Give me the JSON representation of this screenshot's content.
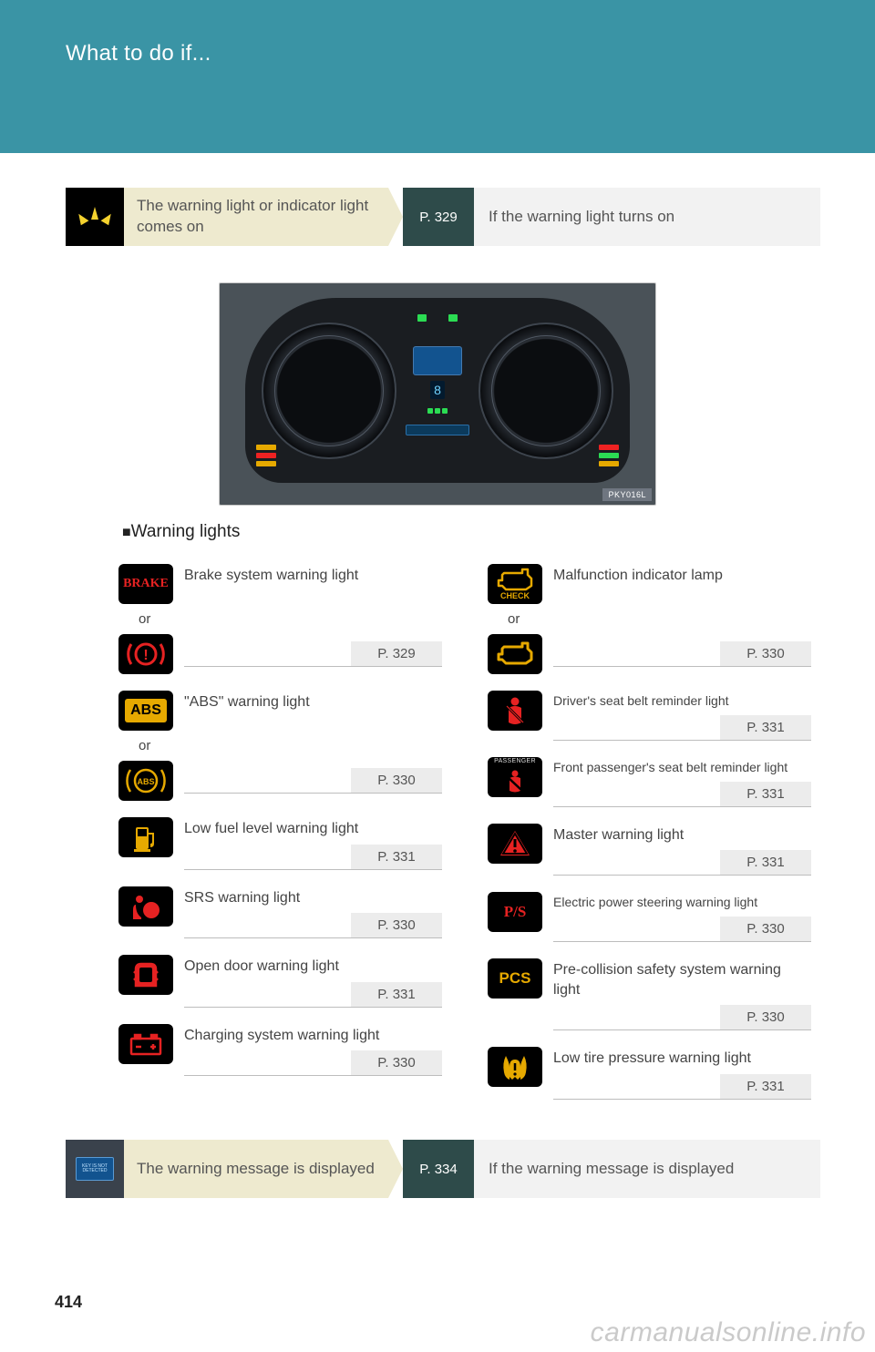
{
  "page": {
    "header": "What to do if...",
    "number": "414",
    "watermark": "carmanualsonline.info",
    "section_title": "Warning lights",
    "image_tag": "PKY016L"
  },
  "banner_top": {
    "left_text": "The warning light or indicator light comes on",
    "page_ref": "P. 329",
    "right_text": "If the warning light turns on"
  },
  "banner_bottom": {
    "left_text": "The warning message is displayed",
    "page_ref": "P. 334",
    "right_text": "If the warning message is displayed"
  },
  "left_col": [
    {
      "icon": "brake-text",
      "label": "Brake system warning light",
      "or_icon": "brake-circle",
      "pref": "P. 329"
    },
    {
      "icon": "abs-text",
      "label": "\"ABS\" warning light",
      "or_icon": "abs-circle",
      "pref": "P. 330"
    },
    {
      "icon": "fuel",
      "label": "Low fuel level warning light",
      "pref": "P. 331"
    },
    {
      "icon": "srs",
      "label": "SRS warning light",
      "pref": "P. 330"
    },
    {
      "icon": "door",
      "label": "Open door warning light",
      "pref": "P. 331"
    },
    {
      "icon": "battery",
      "label": "Charging system warning light",
      "pref": "P. 330"
    }
  ],
  "right_col": [
    {
      "icon": "check-text",
      "label": "Malfunction indicator lamp",
      "or_icon": "check-plain",
      "pref": "P. 330"
    },
    {
      "icon": "seatbelt",
      "label": "Driver's seat belt reminder light",
      "pref": "P. 331",
      "small": true
    },
    {
      "icon": "passenger-seatbelt",
      "label": "Front passenger's seat belt reminder light",
      "pref": "P. 331",
      "small": true
    },
    {
      "icon": "master",
      "label": "Master warning light",
      "pref": "P. 331"
    },
    {
      "icon": "ps",
      "label": "Electric power steering warning light",
      "pref": "P. 330",
      "small": true
    },
    {
      "icon": "pcs",
      "label": "Pre-collision safety system warning light",
      "pref": "P. 330"
    },
    {
      "icon": "tpms",
      "label": "Low tire pressure warning light",
      "pref": "P. 331"
    }
  ],
  "or_label": "or",
  "colors": {
    "red": "#e62222",
    "amber": "#e6a900"
  }
}
